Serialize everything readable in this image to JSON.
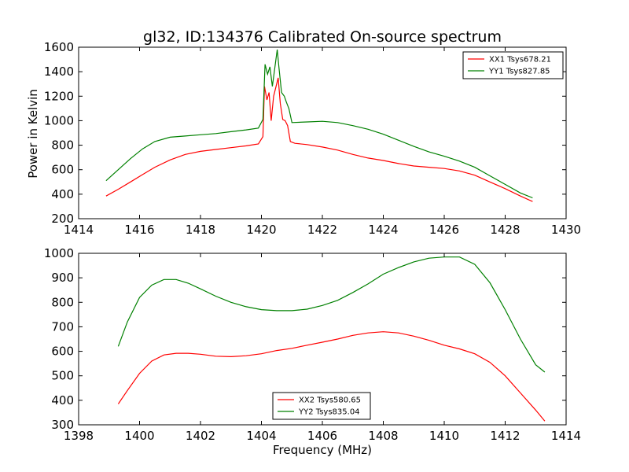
{
  "chart_data": [
    {
      "type": "line",
      "title": "gl32, ID:134376 Calibrated On-source spectrum",
      "xlabel": "",
      "ylabel": "Power in Kelvin",
      "xlim": [
        1414,
        1430
      ],
      "ylim": [
        200,
        1600
      ],
      "xticks": [
        1414,
        1416,
        1418,
        1420,
        1422,
        1424,
        1426,
        1428,
        1430
      ],
      "yticks": [
        200,
        400,
        600,
        800,
        1000,
        1200,
        1400,
        1600
      ],
      "grid": false,
      "legend": "top-right",
      "series": [
        {
          "name": "XX1 Tsys678.21",
          "color": "#ff0000",
          "x": [
            1414.9,
            1415.3,
            1415.7,
            1416.1,
            1416.5,
            1417.0,
            1417.5,
            1418.0,
            1418.5,
            1419.0,
            1419.5,
            1419.9,
            1420.05,
            1420.1,
            1420.18,
            1420.25,
            1420.32,
            1420.4,
            1420.5,
            1420.55,
            1420.62,
            1420.7,
            1420.78,
            1420.86,
            1420.95,
            1421.1,
            1421.5,
            1422.0,
            1422.5,
            1423.0,
            1423.5,
            1424.0,
            1424.5,
            1425.0,
            1425.5,
            1426.0,
            1426.5,
            1427.0,
            1427.5,
            1428.0,
            1428.5,
            1428.9
          ],
          "values": [
            385,
            440,
            500,
            560,
            620,
            680,
            725,
            750,
            765,
            780,
            795,
            810,
            870,
            1280,
            1170,
            1230,
            1000,
            1200,
            1300,
            1350,
            1140,
            1010,
            1000,
            960,
            830,
            815,
            805,
            785,
            760,
            725,
            695,
            675,
            650,
            630,
            620,
            610,
            590,
            555,
            500,
            445,
            385,
            340
          ]
        },
        {
          "name": "YY1 Tsys827.85",
          "color": "#008000",
          "x": [
            1414.9,
            1415.3,
            1415.7,
            1416.1,
            1416.5,
            1417.0,
            1417.5,
            1418.0,
            1418.5,
            1419.0,
            1419.5,
            1419.9,
            1420.05,
            1420.12,
            1420.2,
            1420.28,
            1420.36,
            1420.45,
            1420.52,
            1420.58,
            1420.66,
            1420.75,
            1420.82,
            1420.9,
            1421.0,
            1421.5,
            1422.0,
            1422.5,
            1423.0,
            1423.5,
            1424.0,
            1424.5,
            1425.0,
            1425.5,
            1426.0,
            1426.5,
            1427.0,
            1427.5,
            1428.0,
            1428.5,
            1428.9
          ],
          "values": [
            510,
            600,
            690,
            770,
            830,
            865,
            875,
            885,
            895,
            910,
            925,
            940,
            1010,
            1460,
            1380,
            1440,
            1280,
            1450,
            1580,
            1420,
            1230,
            1200,
            1150,
            1100,
            985,
            990,
            995,
            985,
            960,
            930,
            890,
            840,
            790,
            745,
            710,
            670,
            620,
            550,
            480,
            410,
            370
          ]
        }
      ]
    },
    {
      "type": "line",
      "title": "",
      "xlabel": "Frequency (MHz)",
      "ylabel": "",
      "xlim": [
        1398,
        1414
      ],
      "ylim": [
        300,
        1000
      ],
      "xticks": [
        1398,
        1400,
        1402,
        1404,
        1406,
        1408,
        1410,
        1412,
        1414
      ],
      "yticks": [
        300,
        400,
        500,
        600,
        700,
        800,
        900,
        1000
      ],
      "grid": false,
      "legend": "bottom-center",
      "series": [
        {
          "name": "XX2 Tsys580.65",
          "color": "#ff0000",
          "x": [
            1399.3,
            1399.6,
            1400.0,
            1400.4,
            1400.8,
            1401.2,
            1401.6,
            1402.0,
            1402.5,
            1403.0,
            1403.5,
            1404.0,
            1404.5,
            1405.0,
            1405.5,
            1406.0,
            1406.5,
            1407.0,
            1407.5,
            1408.0,
            1408.5,
            1409.0,
            1409.5,
            1410.0,
            1410.5,
            1411.0,
            1411.5,
            1412.0,
            1412.5,
            1413.0,
            1413.3
          ],
          "values": [
            385,
            440,
            510,
            560,
            585,
            592,
            592,
            588,
            580,
            578,
            582,
            590,
            603,
            612,
            625,
            637,
            650,
            665,
            675,
            680,
            675,
            662,
            645,
            625,
            610,
            590,
            555,
            500,
            430,
            360,
            315
          ]
        },
        {
          "name": "YY2 Tsys835.04",
          "color": "#008000",
          "x": [
            1399.3,
            1399.6,
            1400.0,
            1400.4,
            1400.8,
            1401.2,
            1401.6,
            1402.0,
            1402.5,
            1403.0,
            1403.5,
            1404.0,
            1404.5,
            1405.0,
            1405.5,
            1406.0,
            1406.5,
            1407.0,
            1407.5,
            1408.0,
            1408.5,
            1409.0,
            1409.5,
            1410.0,
            1410.5,
            1411.0,
            1411.5,
            1412.0,
            1412.5,
            1413.0,
            1413.3
          ],
          "values": [
            620,
            720,
            820,
            870,
            893,
            893,
            878,
            855,
            825,
            800,
            782,
            770,
            766,
            766,
            772,
            787,
            808,
            840,
            875,
            915,
            942,
            965,
            980,
            985,
            985,
            955,
            880,
            770,
            650,
            545,
            515
          ]
        }
      ]
    }
  ]
}
